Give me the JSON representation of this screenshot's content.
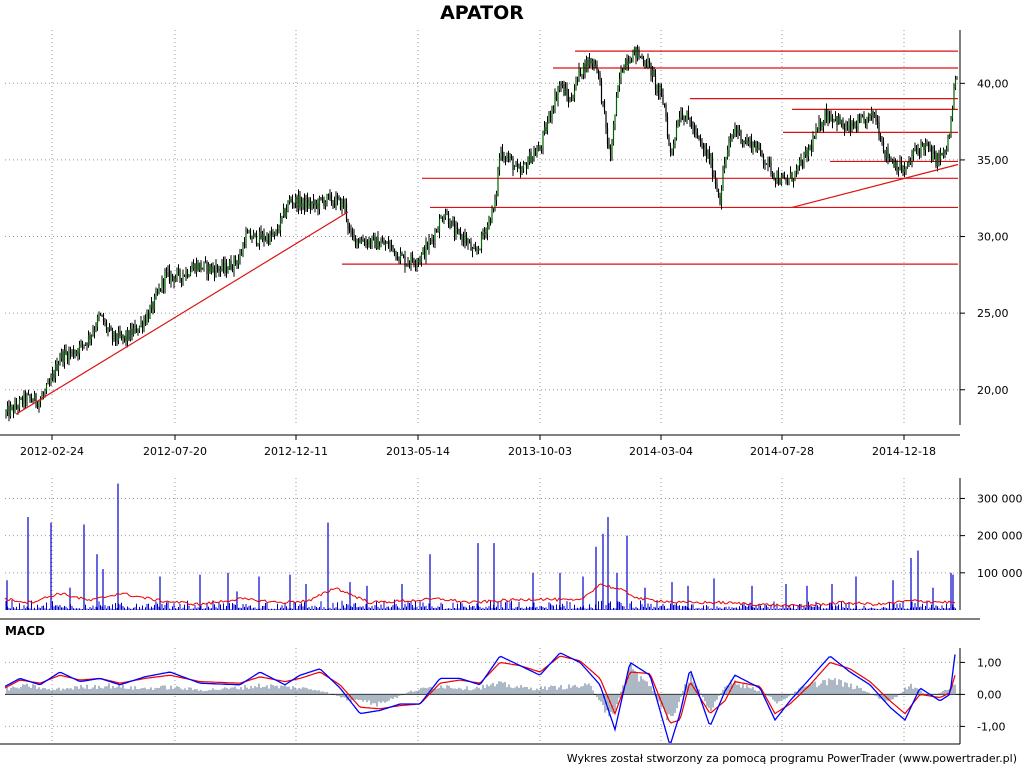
{
  "chart_data": [
    {
      "panel": "price",
      "type": "candlestick",
      "title": "APATOR",
      "x_ticks": [
        "2012-02-24",
        "2012-07-20",
        "2012-12-11",
        "2013-05-14",
        "2013-10-03",
        "2014-03-04",
        "2014-07-28",
        "2014-12-18"
      ],
      "y_ticks": [
        "20,00",
        "25,00",
        "30,00",
        "35,00",
        "40,00"
      ],
      "ylim": [
        17.7,
        42.5
      ],
      "grid": true,
      "series_color": "#006400",
      "close_path": [
        [
          0,
          18.2
        ],
        [
          15,
          18.8
        ],
        [
          25,
          19.4
        ],
        [
          40,
          19.3
        ],
        [
          50,
          20.3
        ],
        [
          60,
          22.2
        ],
        [
          75,
          22.5
        ],
        [
          88,
          23.3
        ],
        [
          100,
          24.8
        ],
        [
          112,
          23.4
        ],
        [
          125,
          23.3
        ],
        [
          140,
          24.2
        ],
        [
          152,
          25.3
        ],
        [
          165,
          27.4
        ],
        [
          180,
          27.4
        ],
        [
          195,
          28.1
        ],
        [
          210,
          27.9
        ],
        [
          225,
          27.9
        ],
        [
          240,
          28.6
        ],
        [
          245,
          30.0
        ],
        [
          260,
          29.9
        ],
        [
          275,
          30.0
        ],
        [
          290,
          32.4
        ],
        [
          305,
          32.1
        ],
        [
          315,
          32.0
        ],
        [
          325,
          32.4
        ],
        [
          335,
          32.3
        ],
        [
          345,
          32.0
        ],
        [
          350,
          30.0
        ],
        [
          360,
          29.8
        ],
        [
          375,
          29.6
        ],
        [
          390,
          29.4
        ],
        [
          405,
          28.4
        ],
        [
          420,
          28.6
        ],
        [
          430,
          29.6
        ],
        [
          445,
          31.7
        ],
        [
          455,
          30.2
        ],
        [
          465,
          29.9
        ],
        [
          475,
          28.7
        ],
        [
          485,
          30.4
        ],
        [
          495,
          32.0
        ],
        [
          500,
          35.6
        ],
        [
          510,
          35.0
        ],
        [
          520,
          34.0
        ],
        [
          530,
          35.2
        ],
        [
          540,
          35.7
        ],
        [
          550,
          38.0
        ],
        [
          560,
          40.0
        ],
        [
          570,
          38.8
        ],
        [
          580,
          40.8
        ],
        [
          590,
          41.5
        ],
        [
          597,
          41.2
        ],
        [
          603,
          38.5
        ],
        [
          610,
          35.0
        ],
        [
          615,
          38.0
        ],
        [
          620,
          40.5
        ],
        [
          625,
          41.5
        ],
        [
          635,
          42.0
        ],
        [
          645,
          41.5
        ],
        [
          650,
          41.0
        ],
        [
          655,
          40.0
        ],
        [
          665,
          38.5
        ],
        [
          670,
          35.2
        ],
        [
          680,
          38.2
        ],
        [
          690,
          37.5
        ],
        [
          700,
          36.0
        ],
        [
          710,
          35.0
        ],
        [
          720,
          32.5
        ],
        [
          725,
          35.0
        ],
        [
          735,
          37.1
        ],
        [
          745,
          36.2
        ],
        [
          755,
          36.0
        ],
        [
          765,
          35.0
        ],
        [
          775,
          34.0
        ],
        [
          785,
          33.5
        ],
        [
          795,
          34.1
        ],
        [
          805,
          35.1
        ],
        [
          815,
          36.5
        ],
        [
          825,
          38.0
        ],
        [
          835,
          37.8
        ],
        [
          845,
          37.0
        ],
        [
          855,
          37.2
        ],
        [
          865,
          37.5
        ],
        [
          875,
          38.0
        ],
        [
          885,
          35.5
        ],
        [
          895,
          34.8
        ],
        [
          905,
          34.2
        ],
        [
          915,
          35.6
        ],
        [
          925,
          36.0
        ],
        [
          935,
          35.0
        ],
        [
          945,
          35.4
        ],
        [
          950,
          36.8
        ],
        [
          955,
          40.0
        ],
        [
          958,
          41.0
        ]
      ],
      "support_resistance_lines": [
        {
          "y": 42.1,
          "x_from": 575,
          "x_to": 958
        },
        {
          "y": 41.0,
          "x_from": 553,
          "x_to": 958
        },
        {
          "y": 39.0,
          "x_from": 690,
          "x_to": 958
        },
        {
          "y": 38.3,
          "x_from": 792,
          "x_to": 958
        },
        {
          "y": 36.8,
          "x_from": 783,
          "x_to": 958
        },
        {
          "y": 34.9,
          "x_from": 830,
          "x_to": 958
        },
        {
          "y": 33.8,
          "x_from": 422,
          "x_to": 958
        },
        {
          "y": 31.9,
          "x_from": 430,
          "x_to": 958
        },
        {
          "y": 28.2,
          "x_from": 342,
          "x_to": 958
        }
      ],
      "trend_lines": [
        {
          "from": [
            16,
            18.4
          ],
          "to": [
            348,
            31.6
          ]
        },
        {
          "from": [
            792,
            31.9
          ],
          "to": [
            958,
            34.7
          ]
        }
      ],
      "trend_color": "#dd1111"
    },
    {
      "panel": "volume",
      "type": "bar",
      "y_ticks": [
        "100 000",
        "200 000",
        "300 000"
      ],
      "ylim": [
        0,
        355000
      ],
      "bar_color": "#0000cc",
      "avg_color": "#ee0000",
      "spikes": [
        [
          7,
          80000
        ],
        [
          28,
          250000
        ],
        [
          51,
          235000
        ],
        [
          70,
          60000
        ],
        [
          84,
          230000
        ],
        [
          97,
          150000
        ],
        [
          103,
          110000
        ],
        [
          118,
          340000
        ],
        [
          160,
          90000
        ],
        [
          200,
          95000
        ],
        [
          228,
          100000
        ],
        [
          237,
          50000
        ],
        [
          259,
          90000
        ],
        [
          290,
          95000
        ],
        [
          306,
          70000
        ],
        [
          328,
          235000
        ],
        [
          350,
          75000
        ],
        [
          367,
          65000
        ],
        [
          402,
          70000
        ],
        [
          430,
          150000
        ],
        [
          478,
          180000
        ],
        [
          494,
          180000
        ],
        [
          533,
          100000
        ],
        [
          560,
          100000
        ],
        [
          583,
          90000
        ],
        [
          596,
          170000
        ],
        [
          603,
          205000
        ],
        [
          608,
          250000
        ],
        [
          617,
          100000
        ],
        [
          627,
          200000
        ],
        [
          645,
          60000
        ],
        [
          672,
          75000
        ],
        [
          688,
          65000
        ],
        [
          714,
          85000
        ],
        [
          752,
          65000
        ],
        [
          786,
          70000
        ],
        [
          807,
          65000
        ],
        [
          832,
          70000
        ],
        [
          856,
          90000
        ],
        [
          893,
          80000
        ],
        [
          911,
          140000
        ],
        [
          918,
          160000
        ],
        [
          933,
          60000
        ],
        [
          951,
          100000
        ],
        [
          953,
          95000
        ]
      ],
      "avg_path": [
        [
          5,
          30000
        ],
        [
          30,
          20000
        ],
        [
          60,
          45000
        ],
        [
          90,
          25000
        ],
        [
          120,
          45000
        ],
        [
          160,
          25000
        ],
        [
          200,
          15000
        ],
        [
          240,
          30000
        ],
        [
          280,
          20000
        ],
        [
          310,
          25000
        ],
        [
          335,
          60000
        ],
        [
          370,
          20000
        ],
        [
          410,
          25000
        ],
        [
          440,
          30000
        ],
        [
          470,
          20000
        ],
        [
          500,
          25000
        ],
        [
          540,
          30000
        ],
        [
          580,
          25000
        ],
        [
          600,
          70000
        ],
        [
          620,
          55000
        ],
        [
          640,
          30000
        ],
        [
          680,
          20000
        ],
        [
          720,
          20000
        ],
        [
          760,
          15000
        ],
        [
          800,
          10000
        ],
        [
          840,
          20000
        ],
        [
          880,
          15000
        ],
        [
          910,
          25000
        ],
        [
          955,
          20000
        ]
      ]
    },
    {
      "panel": "macd",
      "type": "line",
      "label": "MACD",
      "y_ticks": [
        "1,00",
        "0,00",
        "-1,00"
      ],
      "ylim": [
        -1.55,
        1.45
      ],
      "macd_color": "#0000ff",
      "signal_color": "#ee0000",
      "hist_color": "#8899aa",
      "macd_path": [
        [
          5,
          0.25
        ],
        [
          20,
          0.5
        ],
        [
          40,
          0.3
        ],
        [
          60,
          0.7
        ],
        [
          80,
          0.4
        ],
        [
          100,
          0.5
        ],
        [
          120,
          0.3
        ],
        [
          145,
          0.55
        ],
        [
          170,
          0.7
        ],
        [
          200,
          0.35
        ],
        [
          240,
          0.3
        ],
        [
          260,
          0.7
        ],
        [
          285,
          0.3
        ],
        [
          300,
          0.6
        ],
        [
          320,
          0.8
        ],
        [
          340,
          0.2
        ],
        [
          360,
          -0.6
        ],
        [
          380,
          -0.5
        ],
        [
          400,
          -0.3
        ],
        [
          420,
          -0.3
        ],
        [
          440,
          0.5
        ],
        [
          460,
          0.5
        ],
        [
          480,
          0.3
        ],
        [
          500,
          1.2
        ],
        [
          520,
          0.9
        ],
        [
          540,
          0.6
        ],
        [
          560,
          1.3
        ],
        [
          580,
          1.0
        ],
        [
          600,
          0.3
        ],
        [
          615,
          -1.1
        ],
        [
          630,
          1.0
        ],
        [
          650,
          0.6
        ],
        [
          670,
          -1.6
        ],
        [
          680,
          -0.6
        ],
        [
          690,
          0.8
        ],
        [
          710,
          -1.0
        ],
        [
          725,
          0.1
        ],
        [
          735,
          0.6
        ],
        [
          760,
          0.2
        ],
        [
          775,
          -0.8
        ],
        [
          790,
          -0.2
        ],
        [
          810,
          0.5
        ],
        [
          830,
          1.2
        ],
        [
          850,
          0.7
        ],
        [
          870,
          0.3
        ],
        [
          890,
          -0.4
        ],
        [
          905,
          -0.8
        ],
        [
          920,
          0.2
        ],
        [
          940,
          -0.2
        ],
        [
          950,
          0.0
        ],
        [
          955,
          1.25
        ]
      ],
      "signal_path": [
        [
          5,
          0.2
        ],
        [
          20,
          0.45
        ],
        [
          40,
          0.35
        ],
        [
          60,
          0.6
        ],
        [
          80,
          0.45
        ],
        [
          100,
          0.5
        ],
        [
          120,
          0.35
        ],
        [
          145,
          0.5
        ],
        [
          170,
          0.6
        ],
        [
          200,
          0.4
        ],
        [
          240,
          0.35
        ],
        [
          260,
          0.55
        ],
        [
          285,
          0.4
        ],
        [
          300,
          0.5
        ],
        [
          320,
          0.7
        ],
        [
          340,
          0.3
        ],
        [
          360,
          -0.4
        ],
        [
          380,
          -0.45
        ],
        [
          400,
          -0.35
        ],
        [
          420,
          -0.3
        ],
        [
          440,
          0.35
        ],
        [
          460,
          0.45
        ],
        [
          480,
          0.35
        ],
        [
          500,
          1.0
        ],
        [
          520,
          0.9
        ],
        [
          540,
          0.7
        ],
        [
          560,
          1.2
        ],
        [
          580,
          1.05
        ],
        [
          600,
          0.5
        ],
        [
          615,
          -0.6
        ],
        [
          630,
          0.7
        ],
        [
          650,
          0.65
        ],
        [
          670,
          -0.9
        ],
        [
          680,
          -0.8
        ],
        [
          690,
          0.4
        ],
        [
          710,
          -0.6
        ],
        [
          725,
          -0.2
        ],
        [
          735,
          0.4
        ],
        [
          760,
          0.25
        ],
        [
          775,
          -0.6
        ],
        [
          790,
          -0.3
        ],
        [
          810,
          0.3
        ],
        [
          830,
          1.0
        ],
        [
          850,
          0.8
        ],
        [
          870,
          0.4
        ],
        [
          890,
          -0.2
        ],
        [
          905,
          -0.6
        ],
        [
          920,
          0.0
        ],
        [
          940,
          -0.1
        ],
        [
          950,
          0.05
        ],
        [
          955,
          0.6
        ]
      ],
      "hist_path": [
        [
          10,
          0.2
        ],
        [
          30,
          0.3
        ],
        [
          50,
          0.15
        ],
        [
          80,
          0.25
        ],
        [
          110,
          0.3
        ],
        [
          140,
          0.2
        ],
        [
          170,
          0.25
        ],
        [
          200,
          0.15
        ],
        [
          230,
          0.2
        ],
        [
          260,
          0.3
        ],
        [
          290,
          0.25
        ],
        [
          320,
          0.15
        ],
        [
          350,
          -0.2
        ],
        [
          380,
          -0.35
        ],
        [
          410,
          0.1
        ],
        [
          440,
          0.3
        ],
        [
          470,
          0.2
        ],
        [
          500,
          0.35
        ],
        [
          530,
          0.2
        ],
        [
          560,
          0.25
        ],
        [
          590,
          0.3
        ],
        [
          610,
          -0.9
        ],
        [
          630,
          0.9
        ],
        [
          650,
          0.3
        ],
        [
          670,
          -1.0
        ],
        [
          690,
          0.7
        ],
        [
          710,
          -0.5
        ],
        [
          730,
          0.5
        ],
        [
          760,
          0.1
        ],
        [
          780,
          -0.3
        ],
        [
          800,
          0.2
        ],
        [
          830,
          0.5
        ],
        [
          860,
          0.2
        ],
        [
          890,
          -0.3
        ],
        [
          910,
          0.35
        ],
        [
          930,
          -0.1
        ],
        [
          955,
          0.3
        ]
      ]
    }
  ],
  "footer": "Wykres został stworzony za pomocą programu PowerTrader (www.powertrader.pl)"
}
